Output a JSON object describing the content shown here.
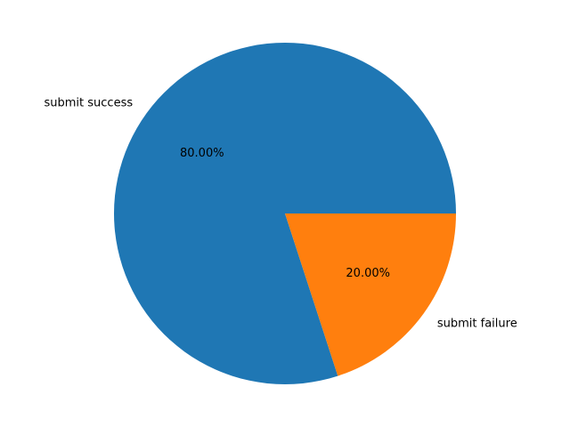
{
  "chart_data": {
    "type": "pie",
    "title": "",
    "slices": [
      {
        "label": "submit success",
        "value": 80,
        "pct_label": "80.00%",
        "color": "#1f77b4"
      },
      {
        "label": "submit failure",
        "value": 20,
        "pct_label": "20.00%",
        "color": "#ff7f0e"
      }
    ],
    "start_angle_deg": 0,
    "direction": "counterclockwise",
    "legend": "none"
  }
}
